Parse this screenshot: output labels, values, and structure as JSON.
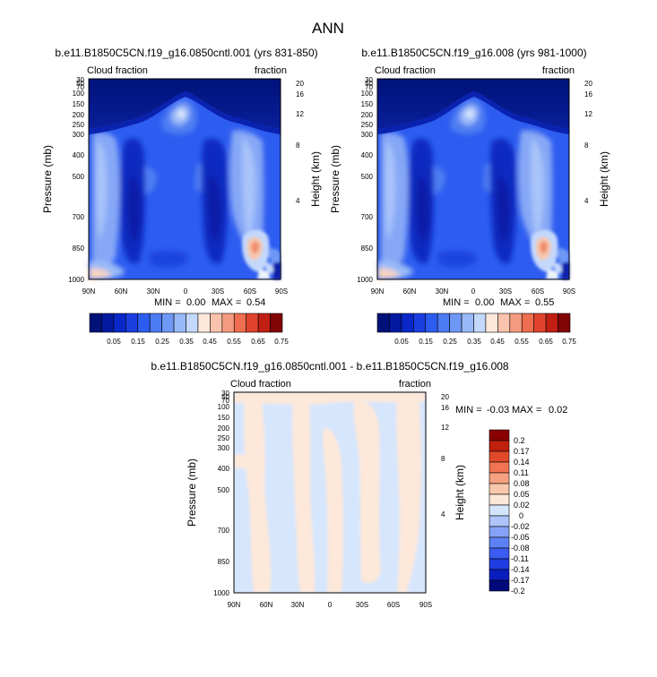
{
  "figure": {
    "season": "ANN",
    "colors": {
      "abs_scale": [
        "#00127a",
        "#0019a0",
        "#0a28c8",
        "#1a3ee0",
        "#2d5cf0",
        "#4c7af2",
        "#6e98f5",
        "#98baf8",
        "#c3d8fb",
        "#fde8da",
        "#f9c3ad",
        "#f49a7e",
        "#ee6e4f",
        "#e0432c",
        "#c01f12",
        "#800505"
      ],
      "diff_scale": [
        "#000a7a",
        "#0a1ec0",
        "#1e3ce0",
        "#3a5cf0",
        "#5e80f5",
        "#86a2f8",
        "#aec4fb",
        "#d4e6fd",
        "#fde8d8",
        "#f9c7ac",
        "#f5a080",
        "#f07452",
        "#e04a2a",
        "#c0200e",
        "#8a0000"
      ]
    }
  },
  "chart_data": [
    {
      "type": "heatmap",
      "title": "b.e11.B1850C5CN.f19_g16.0850cntl.001 (yrs 831-850)",
      "left_label": "Cloud fraction",
      "right_label": "fraction",
      "ylabel": "Pressure (mb)",
      "y2label": "Height (km)",
      "x_ticks": [
        "90N",
        "60N",
        "30N",
        "0",
        "30S",
        "60S",
        "90S"
      ],
      "y_ticks": [
        "30",
        "50",
        "70",
        "100",
        "150",
        "200",
        "250",
        "300",
        "400",
        "500",
        "700",
        "850",
        "1000"
      ],
      "y2_ticks": [
        "20",
        "16",
        "12",
        "8",
        "4"
      ],
      "stats": {
        "min_label": "MIN =",
        "min": "0.00",
        "max_label": "MAX =",
        "max": "0.54"
      },
      "colorbar_labels": [
        "0.05",
        "0.15",
        "0.25",
        "0.35",
        "0.45",
        "0.55",
        "0.65",
        "0.75"
      ]
    },
    {
      "type": "heatmap",
      "title": "b.e11.B1850C5CN.f19_g16.008 (yrs 981-1000)",
      "left_label": "Cloud fraction",
      "right_label": "fraction",
      "ylabel": "Pressure (mb)",
      "y2label": "Height (km)",
      "x_ticks": [
        "90N",
        "60N",
        "30N",
        "0",
        "30S",
        "60S",
        "90S"
      ],
      "y_ticks": [
        "30",
        "50",
        "70",
        "100",
        "150",
        "200",
        "250",
        "300",
        "400",
        "500",
        "700",
        "850",
        "1000"
      ],
      "y2_ticks": [
        "20",
        "16",
        "12",
        "8",
        "4"
      ],
      "stats": {
        "min_label": "MIN =",
        "min": "0.00",
        "max_label": "MAX =",
        "max": "0.55"
      },
      "colorbar_labels": [
        "0.05",
        "0.15",
        "0.25",
        "0.35",
        "0.45",
        "0.55",
        "0.65",
        "0.75"
      ]
    },
    {
      "type": "heatmap",
      "title": "b.e11.B1850C5CN.f19_g16.0850cntl.001 - b.e11.B1850C5CN.f19_g16.008",
      "left_label": "Cloud fraction",
      "right_label": "fraction",
      "ylabel": "Pressure (mb)",
      "y2label": "Height (km)",
      "x_ticks": [
        "90N",
        "60N",
        "30N",
        "0",
        "30S",
        "60S",
        "90S"
      ],
      "y_ticks": [
        "30",
        "50",
        "70",
        "100",
        "150",
        "200",
        "250",
        "300",
        "400",
        "500",
        "700",
        "850",
        "1000"
      ],
      "y2_ticks": [
        "20",
        "16",
        "12",
        "8",
        "4"
      ],
      "stats": {
        "min_label": "MIN =",
        "min": "-0.03",
        "max_label": "MAX =",
        "max": "0.02"
      },
      "colorbar_labels": [
        "0.2",
        "0.17",
        "0.14",
        "0.11",
        "0.08",
        "0.05",
        "0.02",
        "0",
        "-0.02",
        "-0.05",
        "-0.08",
        "-0.11",
        "-0.14",
        "-0.17",
        "-0.2"
      ]
    }
  ]
}
